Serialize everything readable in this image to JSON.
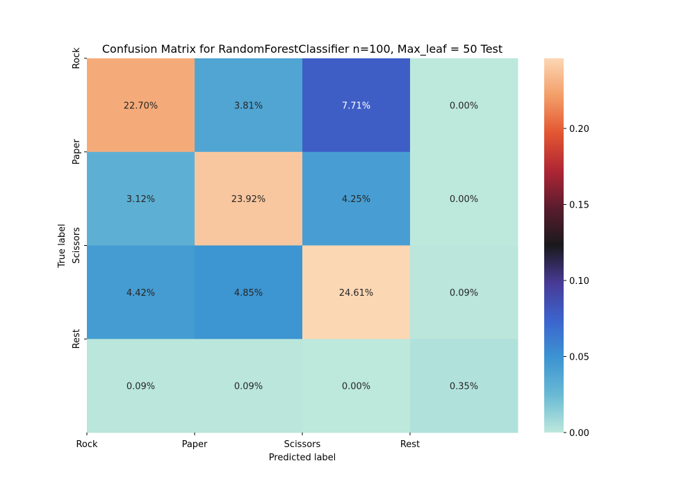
{
  "chart_data": {
    "type": "heatmap",
    "title": "Confusion Matrix for RandomForestClassifier n=100, Max_leaf = 50 Test",
    "xlabel": "Predicted label",
    "ylabel": "True label",
    "x_categories": [
      "Rock",
      "Paper",
      "Scissors",
      "Rest"
    ],
    "y_categories": [
      "Rock",
      "Paper",
      "Scissors",
      "Rest"
    ],
    "values": [
      [
        0.227,
        0.0381,
        0.0771,
        0.0
      ],
      [
        0.0312,
        0.2392,
        0.0425,
        0.0
      ],
      [
        0.0442,
        0.0485,
        0.2461,
        0.0009
      ],
      [
        0.0009,
        0.0009,
        0.0,
        0.0035
      ]
    ],
    "cell_labels": [
      [
        "22.70%",
        "3.81%",
        "7.71%",
        "0.00%"
      ],
      [
        "3.12%",
        "23.92%",
        "4.25%",
        "0.00%"
      ],
      [
        "4.42%",
        "4.85%",
        "24.61%",
        "0.09%"
      ],
      [
        "0.09%",
        "0.09%",
        "0.00%",
        "0.35%"
      ]
    ],
    "colorbar": {
      "range": [
        0,
        0.2461
      ],
      "ticks": [
        0.0,
        0.05,
        0.1,
        0.15,
        0.2
      ],
      "tick_labels": [
        "0.00",
        "0.05",
        "0.10",
        "0.15",
        "0.20"
      ]
    },
    "colormap": "icefire"
  }
}
